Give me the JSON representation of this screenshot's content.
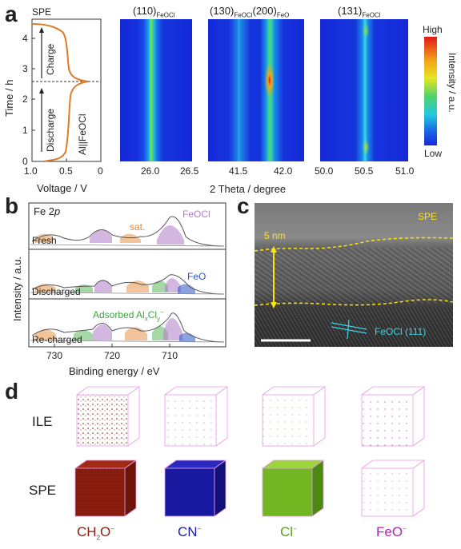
{
  "panel_a": {
    "letter": "a",
    "spe_label": "SPE",
    "y_axis_label": "Time / h",
    "y_ticks": [
      "0",
      "1",
      "2",
      "3",
      "4"
    ],
    "x_axis_label": "Voltage / V",
    "x_ticks": [
      "1.0",
      "0.5",
      "0"
    ],
    "charge_label": "Charge",
    "discharge_label": "Discharge",
    "cell_label": "Al||FeOCl",
    "heatmap_titles": [
      {
        "main": "(110)",
        "sub": "FeOCl"
      },
      {
        "main": "(130)",
        "sub": "FeOCl",
        "main2": "(200)",
        "sub2": "FeO"
      },
      {
        "main": "(131)",
        "sub": "FeOCl"
      }
    ],
    "heatmap_x_ticks": [
      [
        "26.0",
        "26.5"
      ],
      [
        "41.5",
        "42.0"
      ],
      [
        "50.0",
        "50.5",
        "51.0"
      ]
    ],
    "two_theta_label": "2 Theta / degree",
    "colorbar": {
      "high": "High",
      "low": "Low",
      "label": "Intensity / a.u."
    },
    "colors": {
      "curve": "#e07b26",
      "heat_bg": "#1528d8"
    }
  },
  "panel_b": {
    "letter": "b",
    "element_label": "Fe 2",
    "element_orbital": "p",
    "y_axis_label": "Intensity / a.u.",
    "x_axis_label": "Binding energy / eV",
    "x_ticks": [
      "730",
      "720",
      "710"
    ],
    "spectra": [
      "Fresh",
      "Discharged",
      "Re-charged"
    ],
    "sat_label": "sat.",
    "feocl_label": "FeOCl",
    "feo_label": "FeO",
    "adsorbed_label": "Adsorbed Al",
    "adsorbed_sub1": "x",
    "adsorbed_mid": "Cl",
    "adsorbed_sub2": "y",
    "adsorbed_sup": "−",
    "colors": {
      "sat": "#e38a3a",
      "feocl": "#b07cc6",
      "feo": "#2c55c7",
      "adsorbed": "#3aa83a"
    }
  },
  "panel_c": {
    "letter": "c",
    "spe_label": "SPE",
    "thickness_label": "5 nm",
    "lattice_label": "FeOCl (111)",
    "colors": {
      "interface": "#ffe600",
      "lattice": "#3ad6e6"
    }
  },
  "panel_d": {
    "letter": "d",
    "row_labels": [
      "ILE",
      "SPE"
    ],
    "species": [
      {
        "main": "CH",
        "sub": "2",
        "rest": "O",
        "sup": "−",
        "color": "#8b1d0e"
      },
      {
        "main": "CN",
        "sub": "",
        "rest": "",
        "sup": "−",
        "color": "#1a1aa8"
      },
      {
        "main": "Cl",
        "sub": "",
        "rest": "",
        "sup": "−",
        "color": "#5a9e1a"
      },
      {
        "main": "FeO",
        "sub": "",
        "rest": "",
        "sup": "−",
        "color": "#b324b3"
      }
    ],
    "cube_frame_color": "#e89ae8"
  }
}
